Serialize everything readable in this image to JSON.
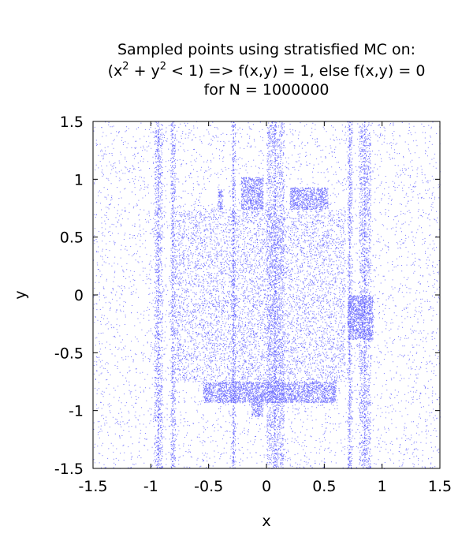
{
  "chart_data": {
    "type": "scatter",
    "title": {
      "line1": "Sampled points using stratisfied MC on:",
      "line2_prefix": "(x",
      "line2_sup1": "2",
      "line2_mid": " + y",
      "line2_sup2": "2",
      "line2_suffix": " < 1) => f(x,y) = 1, else f(x,y) = 0",
      "line3": "for N = 1000000"
    },
    "xlabel": "x",
    "ylabel": "y",
    "xlim": [
      -1.5,
      1.5
    ],
    "ylim": [
      -1.5,
      1.5
    ],
    "xticks": [
      -1.5,
      -1,
      -0.5,
      0,
      0.5,
      1,
      1.5
    ],
    "xtick_labels": [
      "-1.5",
      "-1",
      "-0.5",
      "0",
      "0.5",
      "1",
      "1.5"
    ],
    "yticks": [
      -1.5,
      -1,
      -0.5,
      0,
      0.5,
      1,
      1.5
    ],
    "ytick_labels": [
      "-1.5",
      "-1",
      "-0.5",
      "0",
      "0.5",
      "1",
      "1.5"
    ],
    "grid": false,
    "point_color": "#0000ff",
    "series": [
      {
        "point_count": 1000000,
        "dense_regions": [
          {
            "x": [
              -0.79,
              0.68
            ],
            "y": [
              -0.75,
              0.74
            ]
          },
          {
            "x": [
              -0.22,
              -0.03
            ],
            "y": [
              0.74,
              1.02
            ]
          },
          {
            "x": [
              0.2,
              0.53
            ],
            "y": [
              0.74,
              0.93
            ]
          },
          {
            "x": [
              -0.55,
              0.6
            ],
            "y": [
              -0.93,
              -0.75
            ]
          },
          {
            "x": [
              -0.13,
              -0.03
            ],
            "y": [
              -1.05,
              -0.93
            ]
          },
          {
            "x": [
              0.7,
              0.92
            ],
            "y": [
              -0.38,
              0.0
            ]
          },
          {
            "x": [
              -0.42,
              -0.38
            ],
            "y": [
              0.74,
              0.92
            ]
          }
        ],
        "vertical_bands": [
          {
            "x": [
              -0.97,
              -0.9
            ],
            "y": [
              -1.5,
              1.5
            ]
          },
          {
            "x": [
              -0.83,
              -0.79
            ],
            "y": [
              -1.5,
              1.5
            ]
          },
          {
            "x": [
              -0.3,
              -0.27
            ],
            "y": [
              -1.5,
              1.5
            ]
          },
          {
            "x": [
              0.0,
              0.15
            ],
            "y": [
              -1.5,
              1.5
            ]
          },
          {
            "x": [
              0.7,
              0.74
            ],
            "y": [
              -1.5,
              1.5
            ]
          },
          {
            "x": [
              0.8,
              0.9
            ],
            "y": [
              -1.5,
              1.5
            ]
          }
        ]
      }
    ]
  }
}
